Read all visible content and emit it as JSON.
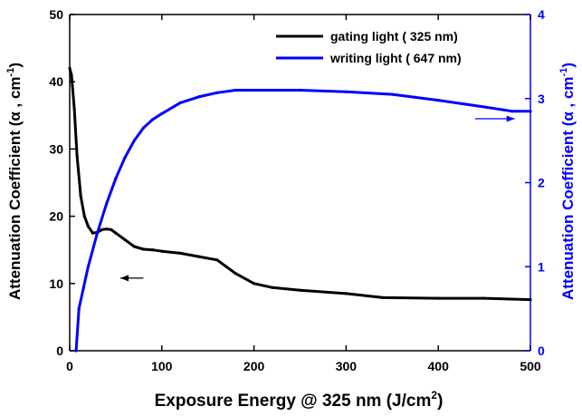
{
  "chart_data": {
    "type": "line",
    "title": "",
    "xlabel": "Exposure Energy @ 325 nm (J/cm²)",
    "ylabel_left": "Attenuation Coefficient (α, cm⁻¹)",
    "ylabel_right": "Attenuation Coefficient (α, cm⁻¹)",
    "xlim": [
      0,
      500
    ],
    "ylim_left": [
      0,
      50
    ],
    "ylim_right": [
      0,
      4
    ],
    "x_ticks": [
      0,
      100,
      200,
      300,
      400,
      500
    ],
    "y_left_ticks": [
      0,
      10,
      20,
      30,
      40,
      50
    ],
    "y_right_ticks": [
      0,
      1,
      2,
      3,
      4
    ],
    "grid": false,
    "legend_position": "top-right",
    "series": [
      {
        "name": "gating light ( 325 nm)",
        "axis": "left",
        "color": "#000000",
        "x": [
          0,
          2,
          5,
          8,
          12,
          16,
          20,
          25,
          30,
          35,
          40,
          45,
          50,
          60,
          70,
          80,
          90,
          100,
          120,
          140,
          160,
          170,
          180,
          200,
          220,
          250,
          300,
          340,
          400,
          450,
          500
        ],
        "y": [
          42,
          41,
          36,
          29,
          23,
          20,
          18.5,
          17.5,
          17.6,
          18.0,
          18.1,
          18.0,
          17.5,
          16.5,
          15.5,
          15.1,
          15.0,
          14.8,
          14.5,
          14.0,
          13.5,
          12.5,
          11.5,
          10.0,
          9.4,
          9.0,
          8.5,
          7.9,
          7.8,
          7.8,
          7.6
        ]
      },
      {
        "name": "writing light ( 647 nm)",
        "axis": "right",
        "color": "#0000ff",
        "x": [
          7,
          10,
          15,
          20,
          30,
          40,
          50,
          60,
          70,
          80,
          90,
          100,
          120,
          140,
          160,
          180,
          200,
          250,
          300,
          350,
          400,
          450,
          480,
          500
        ],
        "y": [
          0,
          0.5,
          0.75,
          1.0,
          1.4,
          1.75,
          2.05,
          2.3,
          2.5,
          2.65,
          2.75,
          2.82,
          2.95,
          3.02,
          3.07,
          3.1,
          3.1,
          3.1,
          3.08,
          3.05,
          2.98,
          2.9,
          2.85,
          2.85
        ]
      }
    ],
    "annotations": [
      {
        "type": "arrow",
        "direction": "left",
        "x_from": 80,
        "x_to": 55,
        "y_left": 10.8,
        "color": "#000000"
      },
      {
        "type": "arrow",
        "direction": "right",
        "x_from": 440,
        "x_to": 483,
        "y_left": 34.5,
        "color": "#0000ff"
      }
    ]
  },
  "ylabel_left_parts": {
    "base": "Attenuation Coefficient  (α , cm",
    "sup": "-1",
    "tail": ")"
  },
  "ylabel_right_parts": {
    "base": "Attenuation Coefficient  (α , cm",
    "sup": "-1",
    "tail": ")"
  },
  "xlabel_parts": {
    "base": "Exposure Energy @ 325 nm (J/cm",
    "sup": "2",
    "tail": ")"
  }
}
